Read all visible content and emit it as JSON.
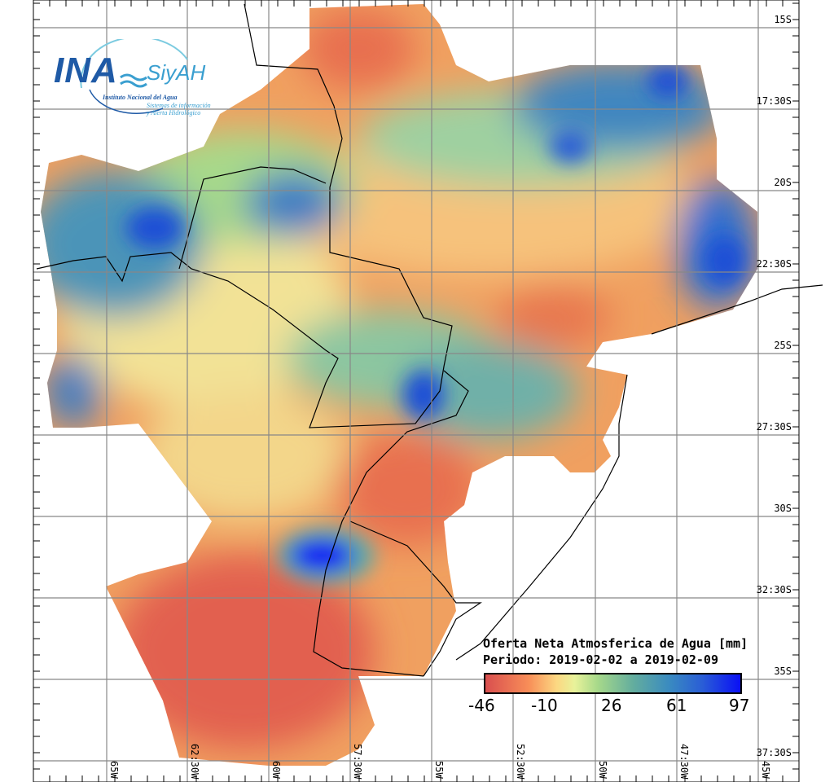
{
  "logo": {
    "name": "INA",
    "product": "SiyAH",
    "institute": "Instituto Nacional del Agua",
    "system_line1": "Sistemas de información",
    "system_line2": "y Alerta Hidrológico"
  },
  "legend": {
    "title": "Oferta Neta Atmosferica de Agua [mm]",
    "period": "Periodo: 2019-02-02 a 2019-02-09",
    "ticks": [
      "-46",
      "-10",
      "26",
      "61",
      "97"
    ],
    "colors": [
      "#d94f4f",
      "#f88e58",
      "#fcd882",
      "#e8f29a",
      "#a7d98a",
      "#63ad9e",
      "#3a8bc0",
      "#2a5ed6",
      "#0a10f5"
    ]
  },
  "lat_labels": [
    "15S",
    "17:30S",
    "20S",
    "22:30S",
    "25S",
    "27:30S",
    "30S",
    "32:30S",
    "35S",
    "37:30S"
  ],
  "lon_labels": [
    "65W",
    "62:30W",
    "60W",
    "57:30W",
    "55W",
    "52:30W",
    "50W",
    "47:30W",
    "45W"
  ]
}
